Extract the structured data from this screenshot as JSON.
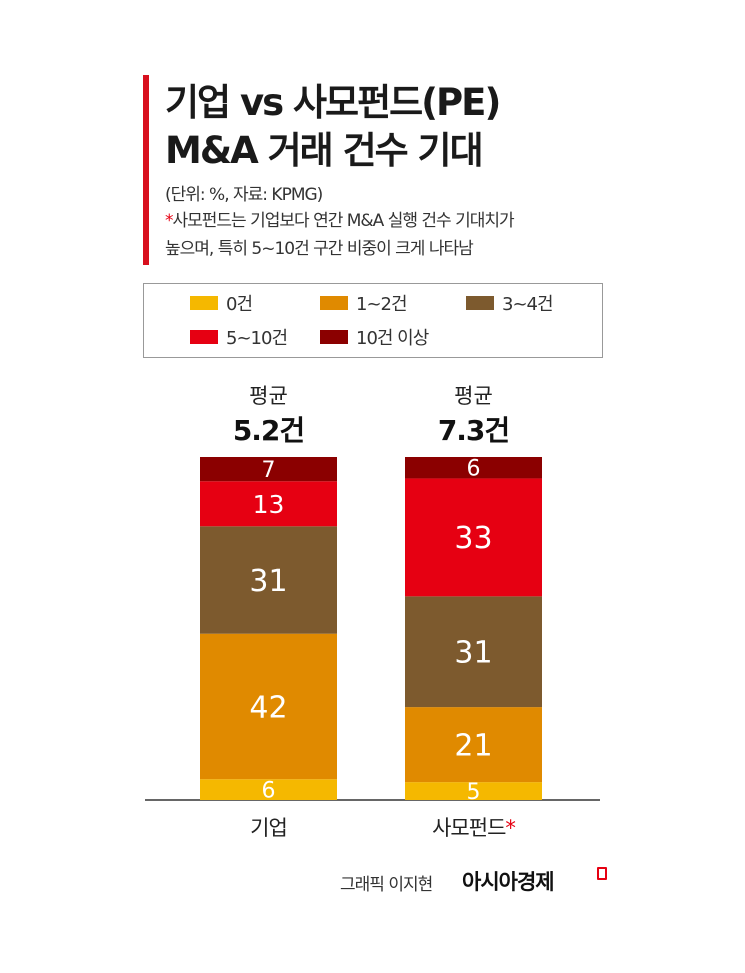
{
  "header": {
    "title_line1": "기업 vs 사모펀드(PE)",
    "title_line2": "M&A 거래 건수 기대",
    "unit_source": "(단위: %, 자료: KPMG)",
    "note_star": "*",
    "note_line1": "사모펀드는 기업보다 연간 M&A 실행 건수 기대치가",
    "note_line2": "높으며, 특히 5~10건 구간 비중이 크게 나타남"
  },
  "chart_data": {
    "type": "bar",
    "stacked": true,
    "title": "기업 vs 사모펀드(PE) M&A 거래 건수 기대",
    "ylabel": "%",
    "categories": [
      "기업",
      "사모펀드"
    ],
    "category_suffix": [
      "",
      "*"
    ],
    "averages": [
      {
        "label": "평균",
        "value": "5.2건"
      },
      {
        "label": "평균",
        "value": "7.3건"
      }
    ],
    "series": [
      {
        "name": "0건",
        "color": "#f5b800",
        "values": [
          6,
          5
        ]
      },
      {
        "name": "1~2건",
        "color": "#e08a00",
        "values": [
          42,
          21
        ]
      },
      {
        "name": "3~4건",
        "color": "#7d5a2e",
        "values": [
          31,
          31
        ]
      },
      {
        "name": "5~10건",
        "color": "#e60012",
        "values": [
          13,
          33
        ]
      },
      {
        "name": "10건 이상",
        "color": "#8b0000",
        "values": [
          7,
          6
        ]
      }
    ],
    "legend": "top"
  },
  "footer": {
    "credit": "그래픽 이지현",
    "brand": "아시아경제"
  }
}
